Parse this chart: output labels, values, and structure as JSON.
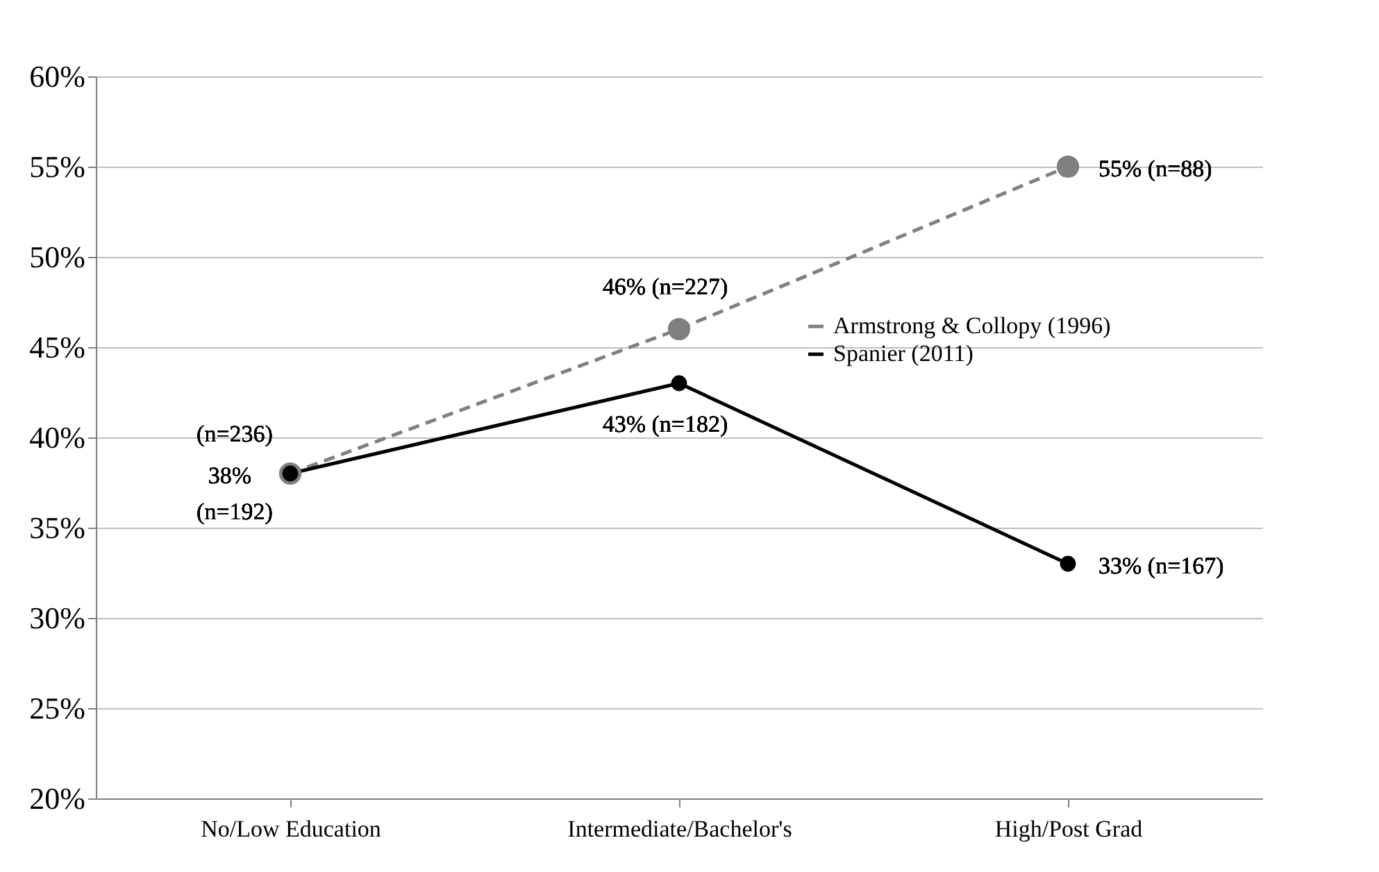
{
  "chart_data": {
    "type": "line",
    "categories": [
      "No/Low Education",
      "Intermediate/Bachelor's",
      "High/Post Grad"
    ],
    "series": [
      {
        "name": "Armstrong & Collopy (1996)",
        "color": "#808080",
        "line_style": "dashed",
        "values": [
          38,
          46,
          55
        ]
      },
      {
        "name": "Spanier (2011)",
        "color": "#000000",
        "line_style": "solid",
        "values": [
          38,
          43,
          33
        ]
      }
    ],
    "ylim": [
      20,
      60
    ],
    "yticks": [
      {
        "value": 20,
        "label": "20%"
      },
      {
        "value": 25,
        "label": "25%"
      },
      {
        "value": 30,
        "label": "30%"
      },
      {
        "value": 35,
        "label": "35%"
      },
      {
        "value": 40,
        "label": "40%"
      },
      {
        "value": 45,
        "label": "45%"
      },
      {
        "value": 50,
        "label": "50%"
      },
      {
        "value": 55,
        "label": "55%"
      },
      {
        "value": 60,
        "label": "60%"
      }
    ],
    "grid": "y",
    "legend": "right",
    "marker": "circle",
    "annotations": [
      {
        "text": "(n=236)",
        "x": "No/Low Education",
        "y": 38
      },
      {
        "text": "38%",
        "x": "No/Low Education",
        "y": 38
      },
      {
        "text": "(n=192)",
        "x": "No/Low Education",
        "y": 38
      },
      {
        "text": "46% (n=227)",
        "x": "Intermediate/Bachelor's",
        "y": 46
      },
      {
        "text": "55% (n=88)",
        "x": "High/Post Grad",
        "y": 55
      },
      {
        "text": "43% (n=182)",
        "x": "Intermediate/Bachelor's",
        "y": 43
      },
      {
        "text": "33% (n=167)",
        "x": "High/Post Grad",
        "y": 33
      }
    ]
  }
}
